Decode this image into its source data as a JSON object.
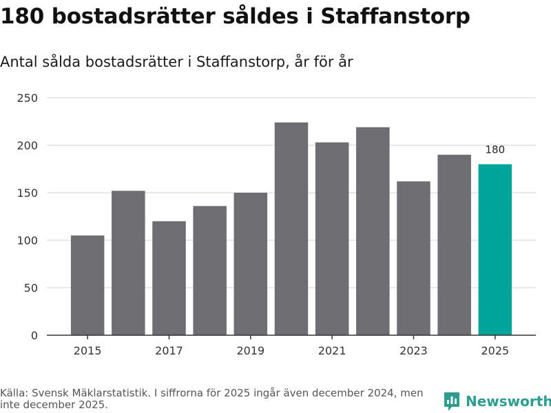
{
  "title": "180 bostadsrätter såldes i Staffanstorp",
  "subtitle": "Antal sålda bostadsrätter i Staffanstorp, år för år",
  "footer": {
    "source": "Källa: Svensk Mäklarstatistik. I siffrorna för 2025 ingår även december 2024, men inte december 2025."
  },
  "brand": {
    "name": "Newsworthy",
    "icon": "newsworthy-logo-icon"
  },
  "colors": {
    "bar": "#6e6d72",
    "highlight": "#00a499",
    "grid": "#d9d9d9",
    "axis": "#333333",
    "brand": "#2a9d8f"
  },
  "chart_data": {
    "type": "bar",
    "title": "Antal sålda bostadsrätter i Staffanstorp, år för år",
    "xlabel": "",
    "ylabel": "",
    "categories": [
      "2015",
      "2016",
      "2017",
      "2018",
      "2019",
      "2020",
      "2021",
      "2022",
      "2023",
      "2024",
      "2025"
    ],
    "values": [
      105,
      152,
      120,
      136,
      150,
      224,
      203,
      219,
      162,
      190,
      180
    ],
    "highlight_index": 10,
    "data_labels": [
      {
        "index": 10,
        "text": "180"
      }
    ],
    "x_tick_labels": [
      "2015",
      "2017",
      "2019",
      "2021",
      "2023",
      "2025"
    ],
    "y_ticks": [
      0,
      50,
      100,
      150,
      200,
      250
    ],
    "ylim": [
      0,
      250
    ],
    "grid": "horizontal"
  }
}
